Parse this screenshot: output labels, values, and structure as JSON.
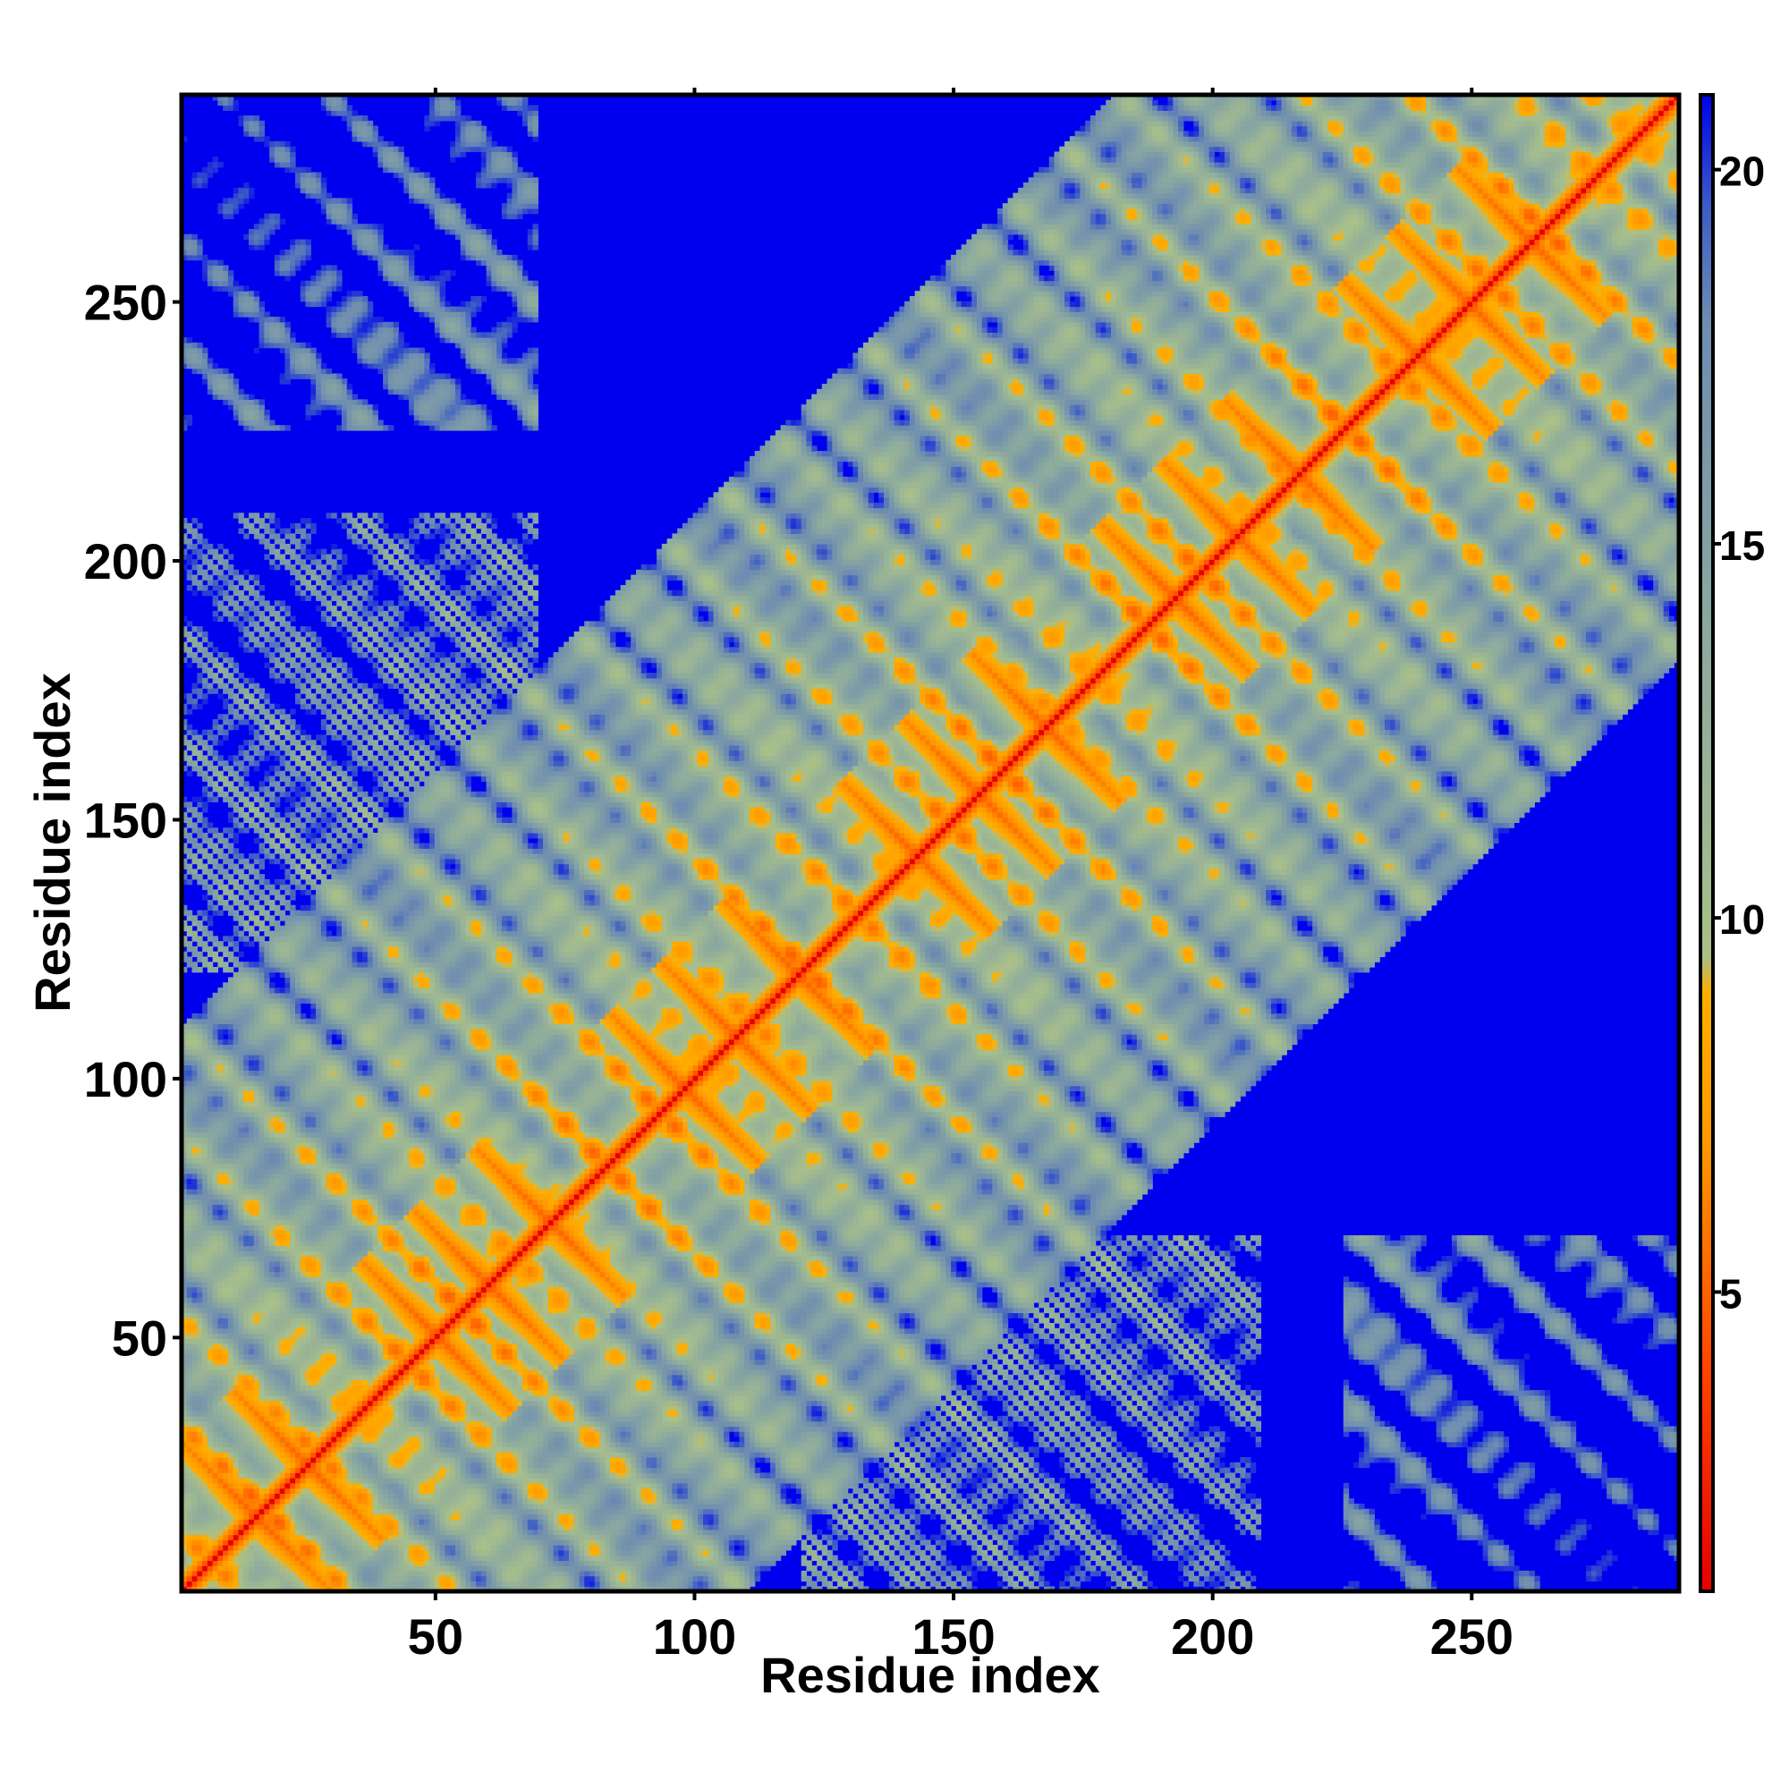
{
  "chart_data": {
    "type": "heatmap",
    "title": "",
    "xlabel": "Residue index",
    "ylabel": "Residue index",
    "x_range": [
      1,
      290
    ],
    "y_range": [
      1,
      290
    ],
    "x_ticks": [
      50,
      100,
      150,
      200,
      250
    ],
    "y_ticks": [
      50,
      100,
      150,
      200,
      250
    ],
    "colorbar": {
      "ticks": [
        5,
        10,
        15,
        20
      ],
      "range": [
        1,
        21
      ],
      "stops": [
        {
          "value": 1,
          "color": "#e60000"
        },
        {
          "value": 4,
          "color": "#ff4500"
        },
        {
          "value": 7,
          "color": "#ff9900"
        },
        {
          "value": 9,
          "color": "#ffb000"
        },
        {
          "value": 9.5,
          "color": "#a9c08a"
        },
        {
          "value": 14,
          "color": "#8aa8a0"
        },
        {
          "value": 18,
          "color": "#6e8cb0"
        },
        {
          "value": 19.5,
          "color": "#3d5cc6"
        },
        {
          "value": 21,
          "color": "#0000ee"
        }
      ]
    },
    "description_values": {
      "diagonal_distance": 1,
      "background_distance": 21,
      "helix_crossing_anchors": [
        {
          "x": 15,
          "y": 15
        },
        {
          "x": 25,
          "y": 25
        },
        {
          "x": 50,
          "y": 50
        },
        {
          "x": 60,
          "y": 60
        },
        {
          "x": 72,
          "y": 72
        },
        {
          "x": 98,
          "y": 98
        },
        {
          "x": 108,
          "y": 108
        },
        {
          "x": 120,
          "y": 120
        },
        {
          "x": 143,
          "y": 143
        },
        {
          "x": 155,
          "y": 155
        },
        {
          "x": 168,
          "y": 168
        },
        {
          "x": 193,
          "y": 193
        },
        {
          "x": 205,
          "y": 205
        },
        {
          "x": 217,
          "y": 217
        },
        {
          "x": 240,
          "y": 240
        },
        {
          "x": 250,
          "y": 250
        },
        {
          "x": 262,
          "y": 262
        }
      ]
    }
  },
  "colors": {
    "background": "#0000ee",
    "diagonal": "#ff1a00",
    "contact_mid": "#9fbf8f",
    "contact_close": "#ff8c00"
  }
}
